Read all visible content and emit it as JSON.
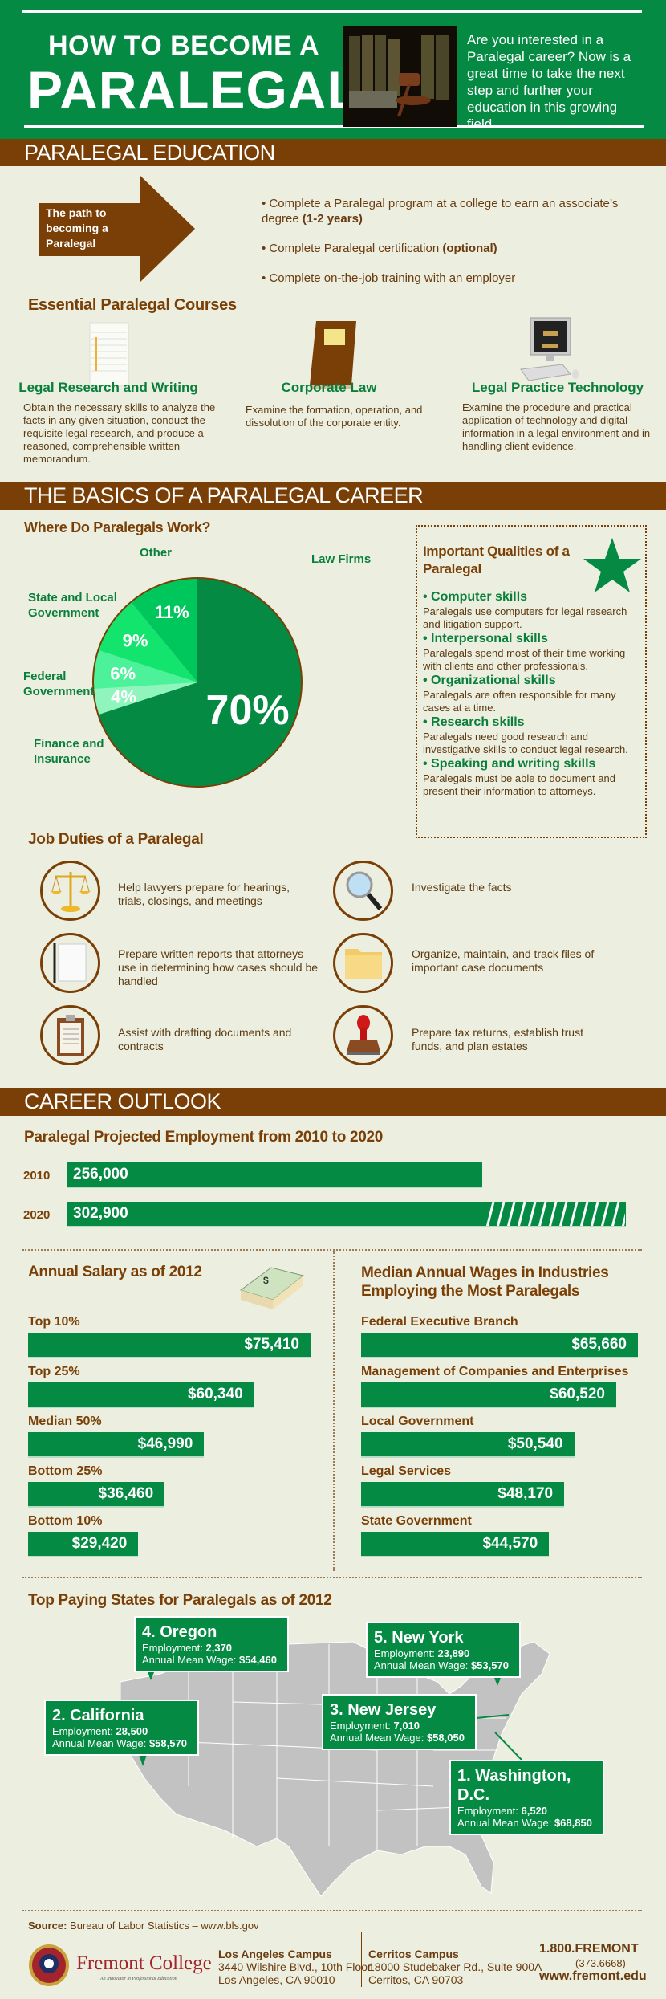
{
  "header": {
    "title_line1": "HOW TO BECOME A",
    "title_line2": "PARALEGAL",
    "intro": "Are you interested in a Paralegal career? Now is a great time to take the next step and further your education in this growing field.",
    "image_icon": "law-books-gavel-image"
  },
  "education": {
    "band_title": "PARALEGAL EDUCATION",
    "arrow_label": "The path to becoming a Paralegal",
    "steps": [
      {
        "text": "• Complete a Paralegal program at a college to earn an associate’s degree ",
        "bold": "(1-2 years)"
      },
      {
        "text": "• Complete Paralegal certification ",
        "bold": "(optional)"
      },
      {
        "text": "• Complete on-the-job training with an employer",
        "bold": ""
      }
    ],
    "courses_title": "Essential Paralegal Courses",
    "courses": [
      {
        "icon": "notepad-icon",
        "title": "Legal Research and Writing",
        "desc": "Obtain the necessary skills to analyze the facts in any given situation, conduct the requisite legal research, and produce a reasoned, comprehensible written memorandum."
      },
      {
        "icon": "book-icon",
        "title": "Corporate Law",
        "desc": "Examine the formation, operation, and dissolution of the corporate entity."
      },
      {
        "icon": "computer-gavel-icon",
        "title": "Legal Practice Technology",
        "desc": "Examine the procedure and practical application of technology and digital information in a legal environment and in handling client evidence."
      }
    ]
  },
  "basics": {
    "band_title": "THE BASICS OF A PARALEGAL CAREER",
    "where_title": "Where Do Paralegals Work?",
    "qualities_title": "Important Qualities of a Paralegal",
    "qualities": [
      {
        "title": "• Computer skills",
        "desc": "Paralegals use computers for legal research and litigation support."
      },
      {
        "title": "• Interpersonal skills",
        "desc": "Paralegals spend most of their time working with clients and other professionals."
      },
      {
        "title": "• Organizational skills",
        "desc": "Paralegals are often responsible for many cases at a time."
      },
      {
        "title": "• Research skills",
        "desc": "Paralegals need good research and investigative skills to conduct  legal research."
      },
      {
        "title": "• Speaking and writing skills",
        "desc": "Paralegals must be able to document and present their information to attorneys."
      }
    ],
    "duties_title": "Job Duties of a Paralegal",
    "duties": [
      {
        "icon": "scales-of-justice-icon",
        "text": "Help lawyers prepare for hearings, trials, closings, and meetings"
      },
      {
        "icon": "magnifying-glass-icon",
        "text": "Investigate the facts"
      },
      {
        "icon": "notepad-pencil-icon",
        "text": "Prepare written reports that attorneys use in determining how cases should be handled"
      },
      {
        "icon": "folder-icon",
        "text": "Organize, maintain, and track files of important case documents"
      },
      {
        "icon": "clipboard-contract-icon",
        "text": "Assist with drafting  documents and contracts"
      },
      {
        "icon": "rubber-stamp-icon",
        "text": "Prepare tax returns, establish trust funds, and plan estates"
      }
    ]
  },
  "outlook": {
    "band_title": "CAREER OUTLOOK",
    "salary_icon": "money-stack-icon"
  },
  "states": {
    "title": "Top Paying States for Paralegals as of 2012",
    "employment_label": "Employment:",
    "wage_label": "Annual Mean Wage:",
    "items": [
      {
        "name": "4. Oregon",
        "employment": "2,370",
        "wage": "$54,460"
      },
      {
        "name": "5. New York",
        "employment": "23,890",
        "wage": "$53,570"
      },
      {
        "name": "2. California",
        "employment": "28,500",
        "wage": "$58,570"
      },
      {
        "name": "3. New Jersey",
        "employment": "7,010",
        "wage": "$58,050"
      },
      {
        "name": "1. Washington, D.C.",
        "employment": "6,520",
        "wage": "$68,850"
      }
    ]
  },
  "footer": {
    "source_label": "Source:",
    "source_text": " Bureau of Labor Statistics – www.bls.gov",
    "logo_name": "Fremont College",
    "logo_tagline": "An Innovator in Professional Education",
    "la_title": "Los Angeles Campus",
    "la_line1": "3440 Wilshire Blvd., 10th Floor",
    "la_line2": "Los Angeles, CA  90010",
    "cerritos_title": "Cerritos Campus",
    "cerritos_line1": "18000 Studebaker Rd., Suite 900A",
    "cerritos_line2": "Cerritos, CA  90703",
    "phone": "1.800.FREMONT",
    "phone_digits": "(373.6668)",
    "website": "www.fremont.edu"
  },
  "colors": {
    "green": "#058a43",
    "brown": "#7a3f07",
    "background": "#ecefdf"
  },
  "chart_data": [
    {
      "type": "pie",
      "title": "Where Do Paralegals Work?",
      "categories": [
        "Law Firms",
        "Finance and Insurance",
        "Federal Government",
        "State and Local Government",
        "Other"
      ],
      "values": [
        70,
        4,
        6,
        9,
        11
      ],
      "labels": [
        "70%",
        "4%",
        "6%",
        "9%",
        "11%"
      ],
      "colors": [
        "#058a43",
        "#8ff5bd",
        "#4cf29a",
        "#12e46e",
        "#00c75c"
      ]
    },
    {
      "type": "bar",
      "title": "Paralegal Projected Employment from 2010 to 2020",
      "categories": [
        "2010",
        "2020"
      ],
      "values": [
        256000,
        302900
      ],
      "labels": [
        "256,000",
        "302,900"
      ]
    },
    {
      "type": "bar",
      "title": "Annual Salary as of 2012",
      "categories": [
        "Top 10%",
        "Top 25%",
        "Median 50%",
        "Bottom 25%",
        "Bottom 10%"
      ],
      "values": [
        75410,
        60340,
        46990,
        36460,
        29420
      ],
      "labels": [
        "$75,410",
        "$60,340",
        "$46,990",
        "$36,460",
        "$29,420"
      ]
    },
    {
      "type": "bar",
      "title": "Median Annual Wages in Industries Employing the Most Paralegals",
      "categories": [
        "Federal Executive Branch",
        "Management of Companies and Enterprises",
        "Local Government",
        "Legal Services",
        "State Government"
      ],
      "values": [
        65660,
        60520,
        50540,
        48170,
        44570
      ],
      "labels": [
        "$65,660",
        "$60,520",
        "$50,540",
        "$48,170",
        "$44,570"
      ]
    }
  ]
}
